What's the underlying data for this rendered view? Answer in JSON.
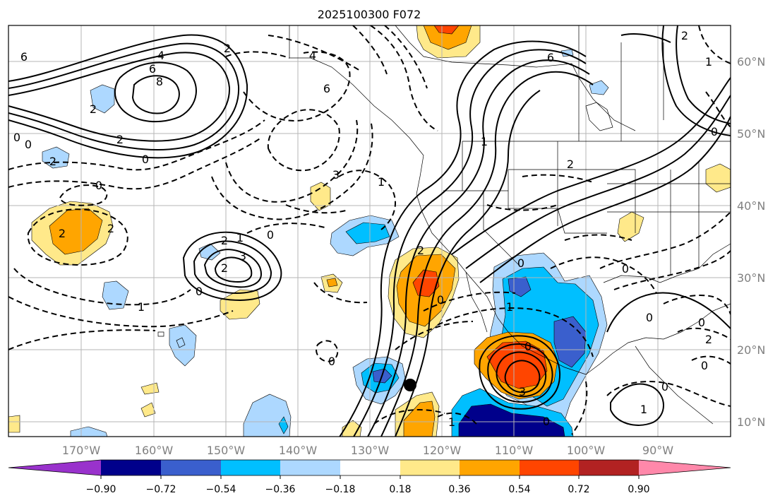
{
  "title": "2025100300 F072",
  "lon_labels": [
    "170°W",
    "160°W",
    "150°W",
    "140°W",
    "130°W",
    "120°W",
    "110°W",
    "100°W",
    "90°W"
  ],
  "lat_labels": [
    "60°N",
    "50°N",
    "40°N",
    "30°N",
    "20°N",
    "10°N"
  ],
  "colorbar": {
    "colors": [
      "#9932cc",
      "#00008b",
      "#3a5fcd",
      "#00bfff",
      "#add8ff",
      "#ffffff",
      "#ffe98a",
      "#ffa500",
      "#ff4500",
      "#b22222",
      "#ff88aa"
    ],
    "tick_labels": [
      "−0.90",
      "−0.72",
      "−0.54",
      "−0.36",
      "−0.18",
      "0.18",
      "0.36",
      "0.54",
      "0.72",
      "0.90"
    ]
  },
  "contour_labels": [
    "4",
    "6",
    "8",
    "6",
    "2",
    "4",
    "6",
    "2",
    "2",
    "0",
    "0",
    "2",
    "2",
    "2",
    "1",
    "3",
    "0",
    "2",
    "3",
    "0",
    "1",
    "1",
    "0",
    "2",
    "0",
    "0",
    "1",
    "2",
    "0",
    "6",
    "1",
    "2",
    "0",
    "0",
    "0",
    "0",
    "1",
    "3",
    "2",
    "0",
    "0",
    "1",
    "0",
    "1",
    "0",
    "2",
    "0"
  ],
  "marker": "filled-circle"
}
